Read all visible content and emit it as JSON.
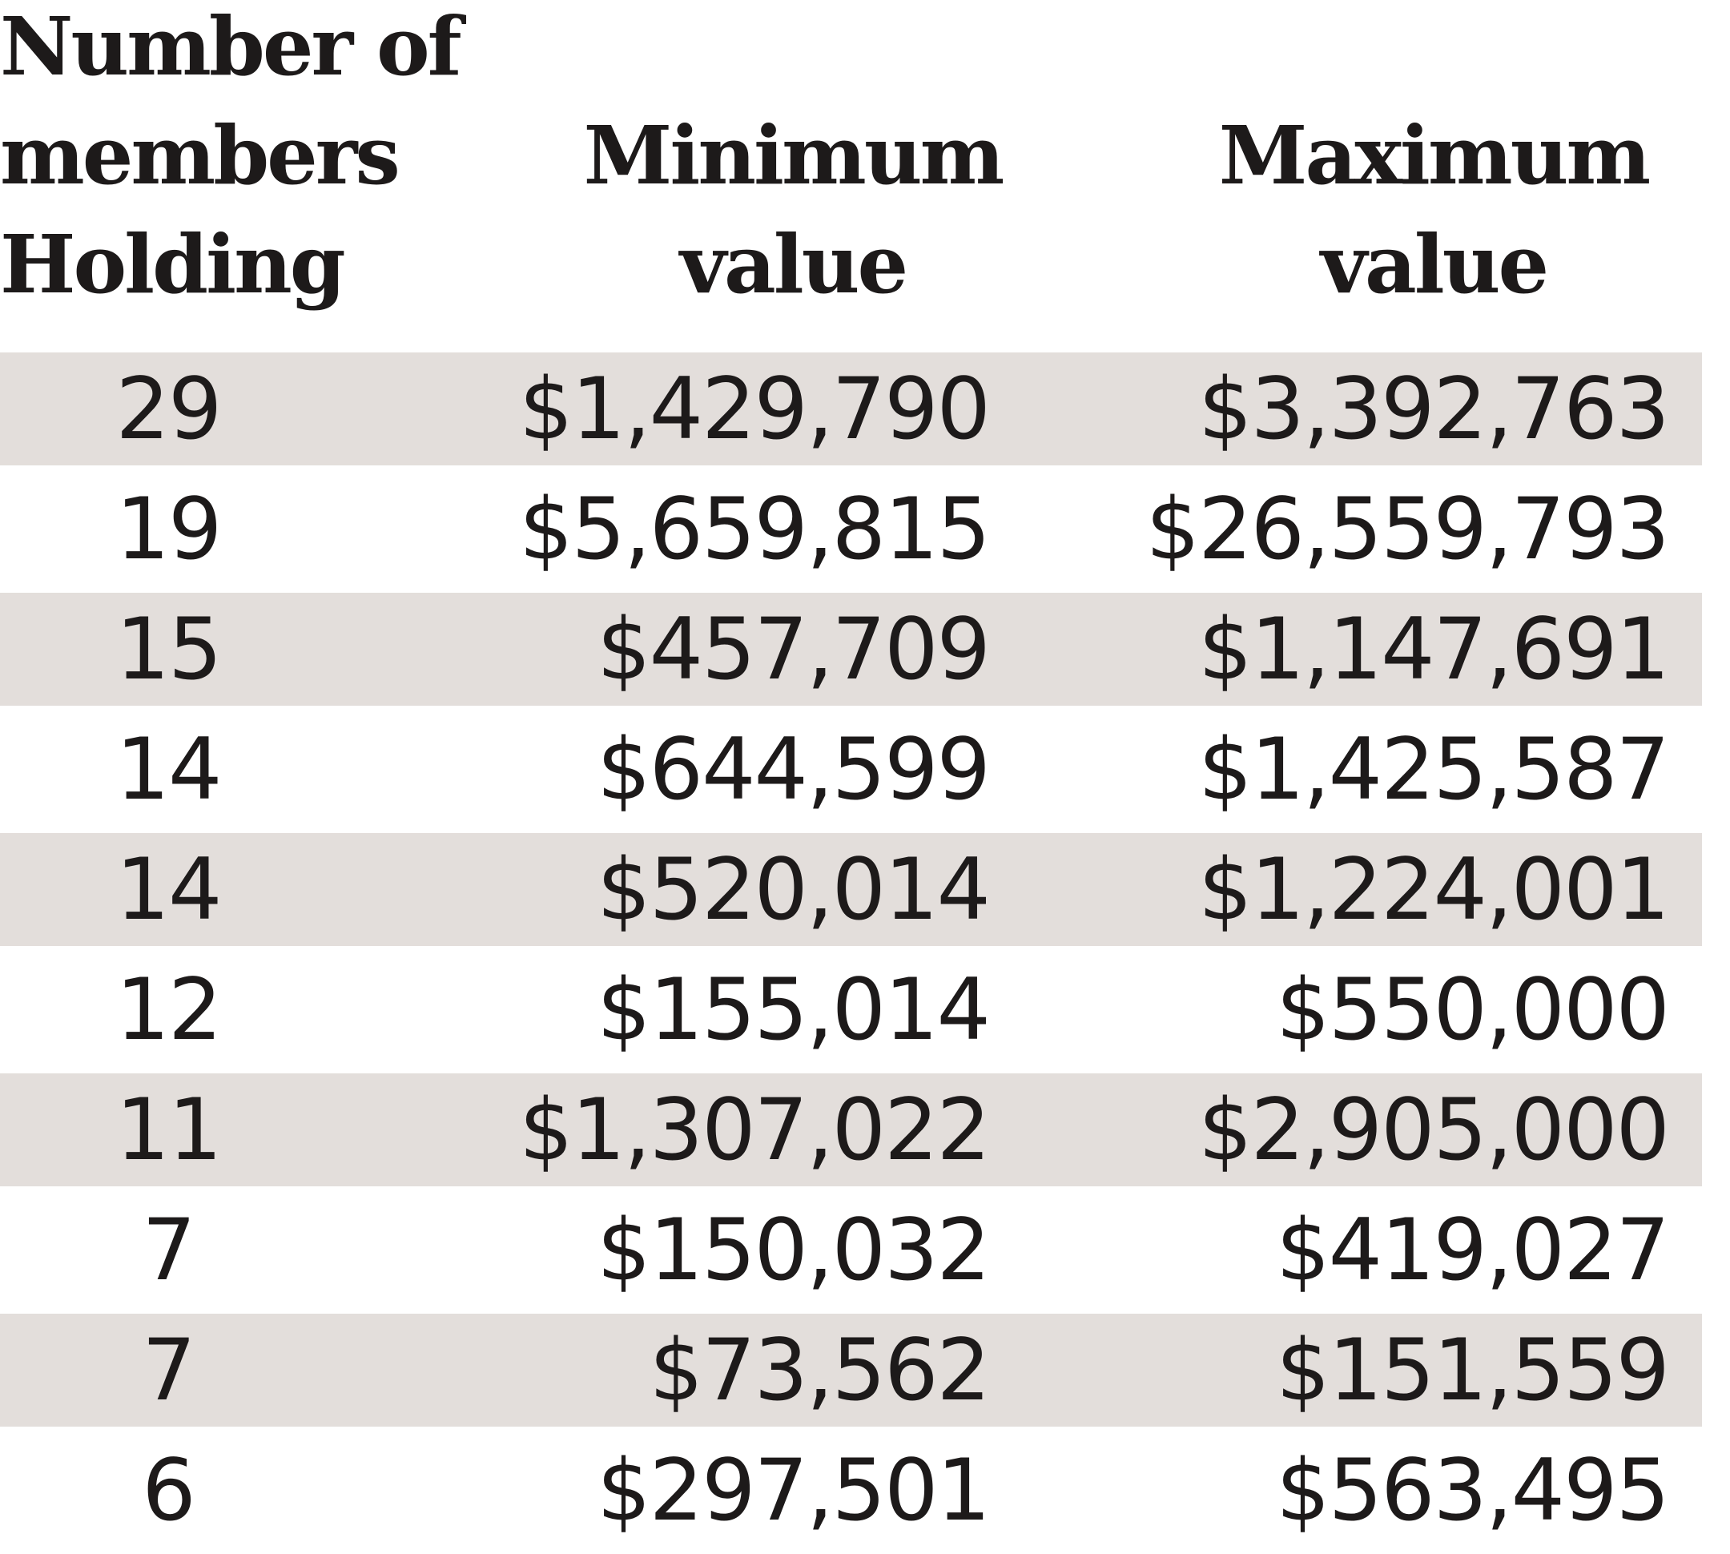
{
  "table": {
    "headers": [
      "Number of\nmembers\nHolding",
      "Minimum\nvalue",
      "Maximum\nvalue"
    ],
    "rows": [
      {
        "members": "29",
        "min": "$1,429,790",
        "max": "$3,392,763"
      },
      {
        "members": "19",
        "min": "$5,659,815",
        "max": "$26,559,793"
      },
      {
        "members": "15",
        "min": "$457,709",
        "max": "$1,147,691"
      },
      {
        "members": "14",
        "min": "$644,599",
        "max": "$1,425,587"
      },
      {
        "members": "14",
        "min": "$520,014",
        "max": "$1,224,001"
      },
      {
        "members": "12",
        "min": "$155,014",
        "max": "$550,000"
      },
      {
        "members": "11",
        "min": "$1,307,022",
        "max": "$2,905,000"
      },
      {
        "members": "7",
        "min": "$150,032",
        "max": "$419,027"
      },
      {
        "members": "7",
        "min": "$73,562",
        "max": "$151,559"
      },
      {
        "members": "6",
        "min": "$297,501",
        "max": "$563,495"
      }
    ]
  },
  "colors": {
    "stripe": "#e3dedb",
    "text": "#1d1a1a"
  }
}
